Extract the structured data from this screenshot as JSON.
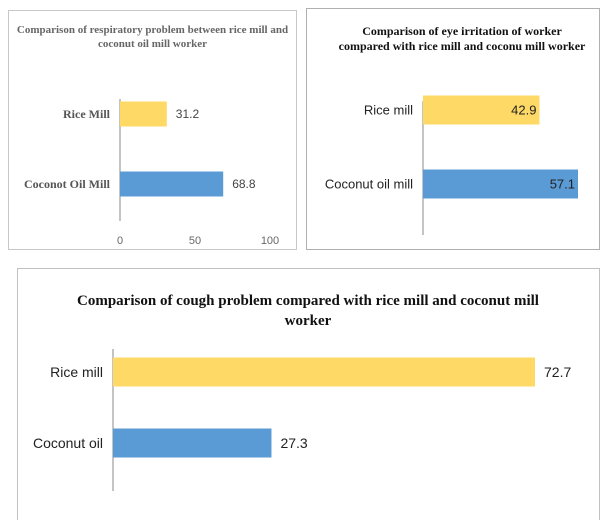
{
  "chart_data": [
    {
      "type": "bar",
      "orientation": "horizontal",
      "title": "Comparison of respiratory problem between rice mill and coconut oil mill worker",
      "categories": [
        "Rice Mill",
        "Coconot Oil Mill"
      ],
      "values": [
        31.2,
        68.8
      ],
      "value_labels": [
        "31.2",
        "68.8"
      ],
      "colors": [
        "#FFD966",
        "#5B9BD5"
      ],
      "xlim": [
        0,
        100
      ],
      "ticks": [
        0,
        50,
        100
      ],
      "tick_labels": [
        "0",
        "50",
        "100"
      ],
      "grid": false
    },
    {
      "type": "bar",
      "orientation": "horizontal",
      "title": "Comparison of eye irritation of worker compared with rice mill and coconu mill worker",
      "categories": [
        "Rice mill",
        "Coconut oil mill"
      ],
      "values": [
        42.9,
        57.1
      ],
      "value_labels": [
        "42.9",
        "57.1"
      ],
      "colors": [
        "#FFD966",
        "#5B9BD5"
      ],
      "xlim": [
        0,
        57.1
      ],
      "grid": false
    },
    {
      "type": "bar",
      "orientation": "horizontal",
      "title": "Comparison of cough problem compared with rice mill and coconut mill worker",
      "categories": [
        "Rice mill",
        "Coconut oil"
      ],
      "values": [
        72.7,
        27.3
      ],
      "value_labels": [
        "72.7",
        "27.3"
      ],
      "colors": [
        "#FFD966",
        "#5B9BD5"
      ],
      "xlim": [
        0,
        72.7
      ],
      "grid": false
    }
  ]
}
